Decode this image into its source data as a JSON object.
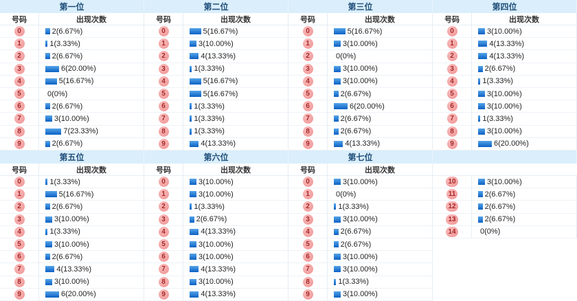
{
  "col_headers": {
    "number": "号码",
    "count": "出现次数"
  },
  "colors": {
    "header_bg": "#daeefb",
    "header_text": "#1f4e79",
    "bar_top": "#55a4e8",
    "bar_bottom": "#0b60c4",
    "badge_bg": "#f2a0a0",
    "badge_text": "#a62626"
  },
  "chart_data": [
    {
      "type": "bar",
      "title": "第一位",
      "categories": [
        "0",
        "1",
        "2",
        "3",
        "4",
        "5",
        "6",
        "7",
        "8",
        "9"
      ],
      "values": [
        2,
        1,
        2,
        6,
        5,
        0,
        2,
        3,
        7,
        2
      ],
      "pct": [
        6.67,
        3.33,
        6.67,
        20,
        16.67,
        0,
        6.67,
        10,
        23.33,
        6.67
      ],
      "labels": [
        "2(6.67%)",
        "1(3.33%)",
        "2(6.67%)",
        "6(20.00%)",
        "5(16.67%)",
        "0(0%)",
        "2(6.67%)",
        "3(10.00%)",
        "7(23.33%)",
        "2(6.67%)"
      ]
    },
    {
      "type": "bar",
      "title": "第二位",
      "categories": [
        "0",
        "1",
        "2",
        "3",
        "4",
        "5",
        "6",
        "7",
        "8",
        "9"
      ],
      "values": [
        5,
        3,
        4,
        1,
        5,
        5,
        1,
        1,
        1,
        4
      ],
      "pct": [
        16.67,
        10,
        13.33,
        3.33,
        16.67,
        16.67,
        3.33,
        3.33,
        3.33,
        13.33
      ],
      "labels": [
        "5(16.67%)",
        "3(10.00%)",
        "4(13.33%)",
        "1(3.33%)",
        "5(16.67%)",
        "5(16.67%)",
        "1(3.33%)",
        "1(3.33%)",
        "1(3.33%)",
        "4(13.33%)"
      ]
    },
    {
      "type": "bar",
      "title": "第三位",
      "categories": [
        "0",
        "1",
        "2",
        "3",
        "4",
        "5",
        "6",
        "7",
        "8",
        "9"
      ],
      "values": [
        5,
        3,
        0,
        3,
        3,
        2,
        6,
        2,
        2,
        4
      ],
      "pct": [
        16.67,
        10,
        0,
        10,
        10,
        6.67,
        20,
        6.67,
        6.67,
        13.33
      ],
      "labels": [
        "5(16.67%)",
        "3(10.00%)",
        "0(0%)",
        "3(10.00%)",
        "3(10.00%)",
        "2(6.67%)",
        "6(20.00%)",
        "2(6.67%)",
        "2(6.67%)",
        "4(13.33%)"
      ]
    },
    {
      "type": "bar",
      "title": "第四位",
      "categories": [
        "0",
        "1",
        "2",
        "3",
        "4",
        "5",
        "6",
        "7",
        "8",
        "9"
      ],
      "values": [
        3,
        4,
        4,
        2,
        1,
        3,
        3,
        1,
        3,
        6
      ],
      "pct": [
        10,
        13.33,
        13.33,
        6.67,
        3.33,
        10,
        10,
        3.33,
        10,
        20
      ],
      "labels": [
        "3(10.00%)",
        "4(13.33%)",
        "4(13.33%)",
        "2(6.67%)",
        "1(3.33%)",
        "3(10.00%)",
        "3(10.00%)",
        "1(3.33%)",
        "3(10.00%)",
        "6(20.00%)"
      ]
    },
    {
      "type": "bar",
      "title": "第五位",
      "categories": [
        "0",
        "1",
        "2",
        "3",
        "4",
        "5",
        "6",
        "7",
        "8",
        "9"
      ],
      "values": [
        1,
        5,
        2,
        3,
        1,
        3,
        2,
        4,
        3,
        6
      ],
      "pct": [
        3.33,
        16.67,
        6.67,
        10,
        3.33,
        10,
        6.67,
        13.33,
        10,
        20
      ],
      "labels": [
        "1(3.33%)",
        "5(16.67%)",
        "2(6.67%)",
        "3(10.00%)",
        "1(3.33%)",
        "3(10.00%)",
        "2(6.67%)",
        "4(13.33%)",
        "3(10.00%)",
        "6(20.00%)"
      ]
    },
    {
      "type": "bar",
      "title": "第六位",
      "categories": [
        "0",
        "1",
        "2",
        "3",
        "4",
        "5",
        "6",
        "7",
        "8",
        "9"
      ],
      "values": [
        3,
        3,
        1,
        2,
        4,
        3,
        3,
        4,
        3,
        4
      ],
      "pct": [
        10,
        10,
        3.33,
        6.67,
        13.33,
        10,
        10,
        13.33,
        10,
        13.33
      ],
      "labels": [
        "3(10.00%)",
        "3(10.00%)",
        "1(3.33%)",
        "2(6.67%)",
        "4(13.33%)",
        "3(10.00%)",
        "3(10.00%)",
        "4(13.33%)",
        "3(10.00%)",
        "4(13.33%)"
      ]
    },
    {
      "type": "bar",
      "title": "第七位",
      "categories": [
        "0",
        "1",
        "2",
        "3",
        "4",
        "5",
        "6",
        "7",
        "8",
        "9"
      ],
      "values": [
        3,
        0,
        1,
        3,
        2,
        2,
        3,
        3,
        1,
        3
      ],
      "pct": [
        10,
        0,
        3.33,
        10,
        6.67,
        6.67,
        10,
        10,
        3.33,
        10
      ],
      "labels": [
        "3(10.00%)",
        "0(0%)",
        "1(3.33%)",
        "3(10.00%)",
        "2(6.67%)",
        "2(6.67%)",
        "3(10.00%)",
        "3(10.00%)",
        "1(3.33%)",
        "3(10.00%)"
      ]
    },
    {
      "type": "bar",
      "title": "",
      "categories": [
        "10",
        "11",
        "12",
        "13",
        "14"
      ],
      "values": [
        3,
        2,
        2,
        2,
        0
      ],
      "pct": [
        10,
        6.67,
        6.67,
        6.67,
        0
      ],
      "labels": [
        "3(10.00%)",
        "2(6.67%)",
        "2(6.67%)",
        "2(6.67%)",
        "0(0%)"
      ]
    }
  ]
}
